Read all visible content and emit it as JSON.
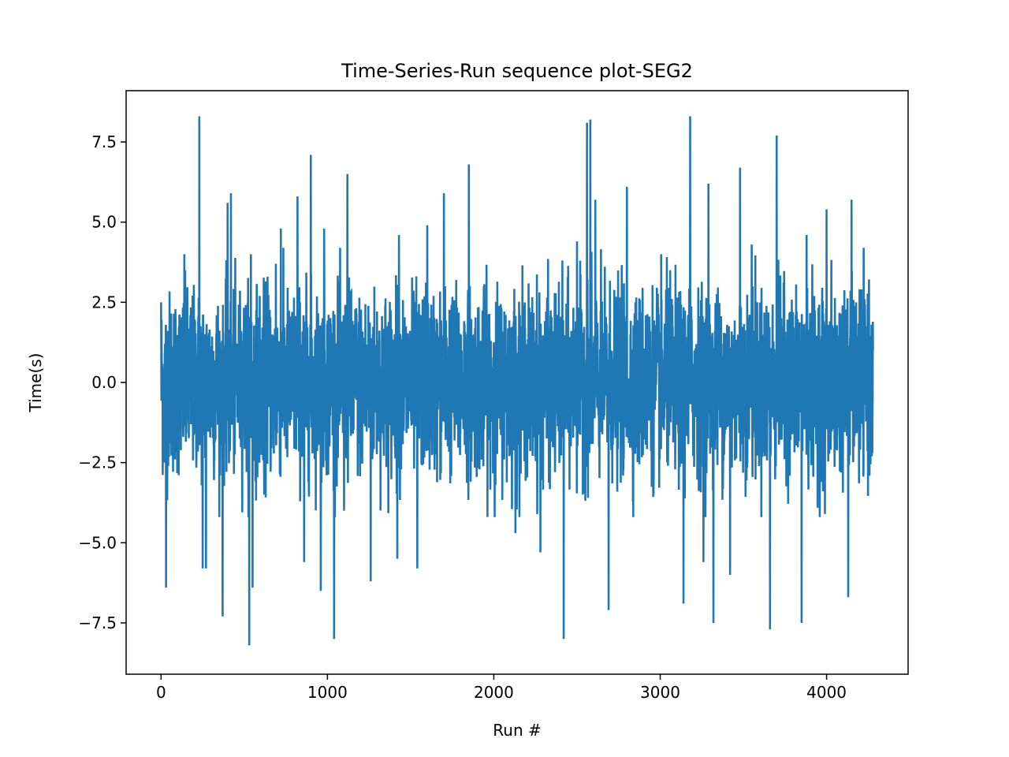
{
  "chart_data": {
    "type": "line",
    "title": "Time-Series-Run sequence plot-SEG2",
    "xlabel": "Run #",
    "ylabel": "Time(s)",
    "xlim": [
      -210,
      4490
    ],
    "ylim": [
      -9.1,
      9.1
    ],
    "xticks": [
      0,
      1000,
      2000,
      3000,
      4000
    ],
    "xtick_labels": [
      "0",
      "1000",
      "2000",
      "3000",
      "4000"
    ],
    "yticks": [
      7.5,
      5.0,
      2.5,
      0.0,
      -2.5,
      -5.0,
      -7.5
    ],
    "ytick_labels": [
      "7.5",
      "5.0",
      "2.5",
      "0.0",
      "−2.5",
      "−5.0",
      "−7.5"
    ],
    "grid": false,
    "series": [
      {
        "color": "#1f77b4",
        "n_points": 4280,
        "approx_noise_std": 1.4,
        "annotated_extremes": [
          {
            "x": 0,
            "y": 2.5
          },
          {
            "x": 20,
            "y": -2.5
          },
          {
            "x": 30,
            "y": -6.4
          },
          {
            "x": 140,
            "y": 4.0
          },
          {
            "x": 230,
            "y": 8.3
          },
          {
            "x": 250,
            "y": -5.8
          },
          {
            "x": 270,
            "y": -5.8
          },
          {
            "x": 370,
            "y": -7.3
          },
          {
            "x": 400,
            "y": 5.6
          },
          {
            "x": 420,
            "y": 5.9
          },
          {
            "x": 530,
            "y": -8.2
          },
          {
            "x": 540,
            "y": 4.0
          },
          {
            "x": 550,
            "y": -6.4
          },
          {
            "x": 620,
            "y": -3.5
          },
          {
            "x": 640,
            "y": 3.3
          },
          {
            "x": 690,
            "y": 3.7
          },
          {
            "x": 720,
            "y": 4.8
          },
          {
            "x": 820,
            "y": 5.8
          },
          {
            "x": 860,
            "y": -5.6
          },
          {
            "x": 900,
            "y": 7.1
          },
          {
            "x": 960,
            "y": -6.5
          },
          {
            "x": 980,
            "y": 4.8
          },
          {
            "x": 1040,
            "y": -8.0
          },
          {
            "x": 1100,
            "y": -4.0
          },
          {
            "x": 1120,
            "y": 6.5
          },
          {
            "x": 1260,
            "y": -6.2
          },
          {
            "x": 1420,
            "y": -5.5
          },
          {
            "x": 1430,
            "y": 4.6
          },
          {
            "x": 1540,
            "y": -5.8
          },
          {
            "x": 1600,
            "y": 4.9
          },
          {
            "x": 1700,
            "y": 5.9
          },
          {
            "x": 1850,
            "y": 6.8
          },
          {
            "x": 2010,
            "y": -3.2
          },
          {
            "x": 2130,
            "y": -4.7
          },
          {
            "x": 2280,
            "y": -5.3
          },
          {
            "x": 2420,
            "y": -8.0
          },
          {
            "x": 2500,
            "y": 4.4
          },
          {
            "x": 2560,
            "y": 8.1
          },
          {
            "x": 2580,
            "y": 8.2
          },
          {
            "x": 2610,
            "y": 5.7
          },
          {
            "x": 2690,
            "y": -7.1
          },
          {
            "x": 2800,
            "y": 6.1
          },
          {
            "x": 2960,
            "y": -3.5
          },
          {
            "x": 3060,
            "y": 3.5
          },
          {
            "x": 3140,
            "y": -6.9
          },
          {
            "x": 3180,
            "y": 8.3
          },
          {
            "x": 3260,
            "y": -5.6
          },
          {
            "x": 3290,
            "y": 6.2
          },
          {
            "x": 3320,
            "y": -7.5
          },
          {
            "x": 3420,
            "y": -6.0
          },
          {
            "x": 3480,
            "y": 6.7
          },
          {
            "x": 3550,
            "y": 4.3
          },
          {
            "x": 3660,
            "y": -7.7
          },
          {
            "x": 3700,
            "y": 7.7
          },
          {
            "x": 3850,
            "y": -7.5
          },
          {
            "x": 3880,
            "y": 4.6
          },
          {
            "x": 3990,
            "y": -4.1
          },
          {
            "x": 4000,
            "y": 5.4
          },
          {
            "x": 4130,
            "y": -6.7
          },
          {
            "x": 4150,
            "y": 5.7
          },
          {
            "x": 4270,
            "y": 1.8
          },
          {
            "x": 4275,
            "y": -2.2
          }
        ]
      }
    ]
  }
}
